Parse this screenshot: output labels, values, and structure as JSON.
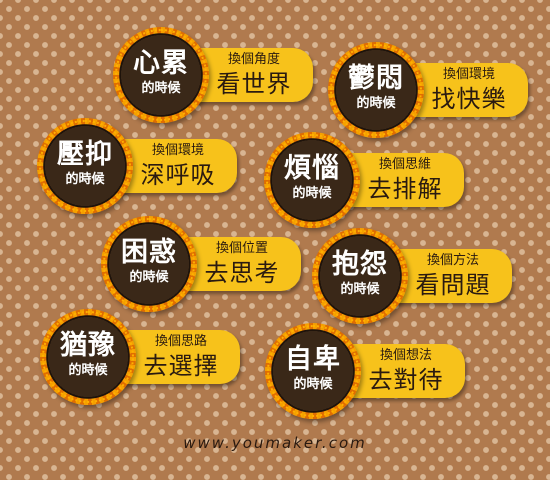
{
  "badges": [
    {
      "feeling": "心累",
      "when": "的時候",
      "action": "換個角度",
      "target": "看世界"
    },
    {
      "feeling": "鬱悶",
      "when": "的時候",
      "action": "換個環境",
      "target": "找快樂"
    },
    {
      "feeling": "壓抑",
      "when": "的時候",
      "action": "換個環境",
      "target": "深呼吸"
    },
    {
      "feeling": "煩惱",
      "when": "的時候",
      "action": "換個思維",
      "target": "去排解"
    },
    {
      "feeling": "困惑",
      "when": "的時候",
      "action": "換個位置",
      "target": "去思考"
    },
    {
      "feeling": "抱怨",
      "when": "的時候",
      "action": "換個方法",
      "target": "看問題"
    },
    {
      "feeling": "猶豫",
      "when": "的時候",
      "action": "換個思路",
      "target": "去選擇"
    },
    {
      "feeling": "自卑",
      "when": "的時候",
      "action": "換個想法",
      "target": "去對待"
    }
  ],
  "footer": {
    "website": "www.youmaker.com"
  },
  "colors": {
    "background": "#b07a4e",
    "dots": "#d8b592",
    "pill": "#f7c21b",
    "circle": "#3a2818",
    "ring": "#f5a000"
  }
}
